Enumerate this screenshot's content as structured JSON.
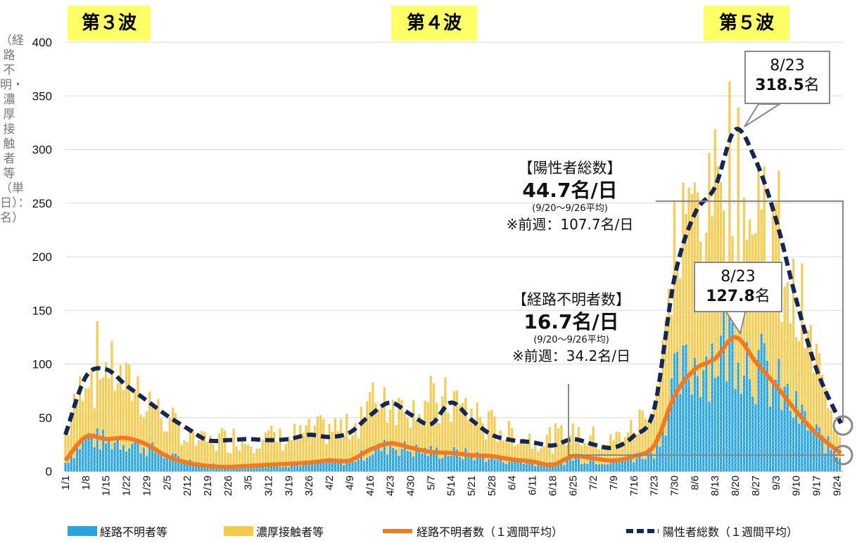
{
  "waves": [
    "第３波",
    "第４波",
    "第５波"
  ],
  "y_axis_label": "（経路不明・濃厚接触者等（単日）：名）",
  "total": {
    "heading": "【陽性者総数】",
    "value": "44.7名/日",
    "period": "(9/20〜9/26平均)",
    "prev": "※前週：107.7名/日"
  },
  "unknown": {
    "heading": "【経路不明者数】",
    "value": "16.7名/日",
    "period": "(9/20〜9/26平均)",
    "prev": "※前週：34.2名/日"
  },
  "peak_total": {
    "date": "8/23",
    "value": "318.5",
    "unit": "名"
  },
  "peak_unknown": {
    "date": "8/23",
    "value": "127.8",
    "unit": "名"
  },
  "legend": {
    "unknown_daily": "経路不明者等",
    "contact_daily": "濃厚接触者等",
    "unknown_avg": "経路不明者数（１週間平均）",
    "total_avg": "陽性者総数（１週間平均）"
  },
  "colors": {
    "unknown_bar": "#29a3dc",
    "contact_bar": "#f5c94a",
    "unknown_line": "#f47a1f",
    "total_line": "#13265a",
    "wave_bg": "#ffff66"
  },
  "chart_data": {
    "type": "bar",
    "title": "",
    "ylim": [
      0,
      400
    ],
    "yticks": [
      0,
      50,
      100,
      150,
      200,
      250,
      300,
      350,
      400
    ],
    "x_tick_labels": [
      "1/1",
      "1/8",
      "1/15",
      "1/22",
      "1/29",
      "2/5",
      "2/12",
      "2/19",
      "2/26",
      "3/5",
      "3/12",
      "3/19",
      "3/26",
      "4/2",
      "4/9",
      "4/16",
      "4/23",
      "4/30",
      "5/7",
      "5/14",
      "5/21",
      "5/28",
      "6/4",
      "6/11",
      "6/18",
      "6/25",
      "7/2",
      "7/9",
      "7/16",
      "7/23",
      "7/30",
      "8/6",
      "8/13",
      "8/20",
      "8/27",
      "9/3",
      "9/10",
      "9/17",
      "9/24"
    ],
    "weekly_points": {
      "dates": [
        "1/1",
        "1/8",
        "1/15",
        "1/22",
        "1/29",
        "2/5",
        "2/12",
        "2/19",
        "2/26",
        "3/5",
        "3/12",
        "3/19",
        "3/26",
        "4/2",
        "4/9",
        "4/16",
        "4/23",
        "4/30",
        "5/7",
        "5/14",
        "5/21",
        "5/28",
        "6/4",
        "6/11",
        "6/18",
        "6/25",
        "7/2",
        "7/9",
        "7/16",
        "7/23",
        "7/30",
        "8/6",
        "8/13",
        "8/20",
        "8/27",
        "9/3",
        "9/10",
        "9/17",
        "9/24"
      ],
      "unknown_daily": [
        8,
        32,
        28,
        28,
        22,
        14,
        10,
        6,
        5,
        5,
        6,
        6,
        8,
        9,
        9,
        18,
        24,
        20,
        18,
        17,
        15,
        12,
        10,
        8,
        6,
        12,
        10,
        9,
        12,
        20,
        80,
        100,
        110,
        125,
        100,
        80,
        55,
        35,
        15
      ],
      "contact_daily": [
        30,
        62,
        72,
        58,
        46,
        32,
        22,
        22,
        26,
        26,
        26,
        26,
        28,
        30,
        30,
        48,
        45,
        42,
        45,
        48,
        40,
        30,
        25,
        22,
        24,
        24,
        22,
        20,
        28,
        48,
        110,
        150,
        160,
        160,
        150,
        130,
        100,
        60,
        30
      ],
      "unknown_avg": [
        10,
        32,
        30,
        31,
        25,
        14,
        8,
        5,
        4,
        5,
        6,
        7,
        8,
        10,
        10,
        20,
        26,
        22,
        18,
        17,
        15,
        14,
        11,
        9,
        6,
        14,
        12,
        10,
        14,
        24,
        70,
        95,
        105,
        125,
        102,
        80,
        56,
        35,
        16.7
      ],
      "total_avg": [
        34,
        88,
        95,
        80,
        66,
        52,
        40,
        29,
        29,
        30,
        29,
        30,
        34,
        32,
        36,
        52,
        64,
        53,
        44,
        64,
        48,
        34,
        29,
        27,
        24,
        30,
        25,
        22,
        33,
        58,
        180,
        240,
        265,
        318.5,
        290,
        235,
        160,
        95,
        44.7
      ]
    },
    "series": [
      {
        "name": "経路不明者等",
        "kind": "bar"
      },
      {
        "name": "濃厚接触者等",
        "kind": "bar-stacked"
      },
      {
        "name": "経路不明者数（１週間平均）",
        "kind": "line"
      },
      {
        "name": "陽性者総数（１週間平均）",
        "kind": "line-dashed"
      }
    ]
  }
}
